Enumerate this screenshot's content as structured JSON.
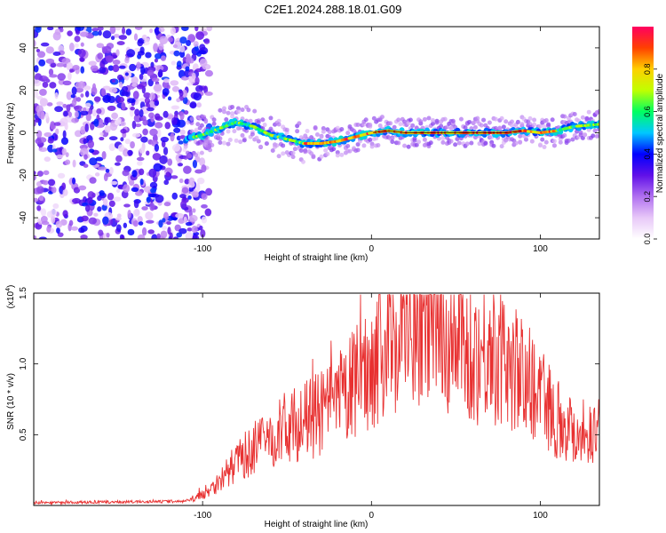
{
  "figure_title": "C2E1.2024.288.18.01.G09",
  "chart_data": [
    {
      "type": "heatmap",
      "title": "",
      "xlabel": "Height of straight line (km)",
      "ylabel": "Frequency (Hz)",
      "xlim": [
        -200,
        135
      ],
      "ylim": [
        -50,
        50
      ],
      "x_ticks": [
        -100,
        0,
        100
      ],
      "y_ticks": [
        -40,
        -20,
        0,
        20,
        40
      ],
      "colorbar": {
        "label": "Normalized spectral amplitude",
        "range": [
          0,
          1
        ],
        "ticks": [
          "0.0",
          "0.2",
          "0.4",
          "0.6",
          "0.8"
        ],
        "colormap": [
          "#ffffff",
          "#e8c8f8",
          "#b070f0",
          "#6010e8",
          "#0000ff",
          "#00c8ff",
          "#00ff60",
          "#c0ff00",
          "#ffd000",
          "#ff4000",
          "#ff0060"
        ]
      },
      "noise_region_x": [
        -200,
        -100
      ],
      "ridge": {
        "x": [
          -110,
          -100,
          -90,
          -80,
          -70,
          -60,
          -50,
          -40,
          -30,
          -20,
          -10,
          0,
          10,
          20,
          40,
          60,
          80,
          90,
          100,
          110,
          120,
          135
        ],
        "y": [
          -3,
          -1,
          2,
          5,
          3,
          -1,
          -3,
          -5,
          -5,
          -4,
          -2,
          0,
          1,
          0,
          0,
          0,
          0,
          1,
          0,
          1,
          3,
          4
        ],
        "peak_amplitude": 1.0
      }
    },
    {
      "type": "line",
      "title": "",
      "xlabel": "Height of straight line (km)",
      "ylabel": "SNR (10 * v/v)",
      "y_multiplier": "(x10",
      "y_multiplier_exp": "4",
      "y_multiplier_close": ")",
      "xlim": [
        -200,
        135
      ],
      "ylim": [
        0,
        1.5
      ],
      "x_ticks": [
        -100,
        0,
        100
      ],
      "y_ticks": [
        "0.5",
        "1.0",
        "1.5"
      ],
      "y_tick_values": [
        0.5,
        1.0,
        1.5
      ],
      "color": "#e83030",
      "series": [
        {
          "x": [
            -200,
            -110,
            -100,
            -90,
            -80,
            -70,
            -60,
            -50,
            -40,
            -30,
            -20,
            -10,
            0,
            10,
            20,
            30,
            40,
            50,
            60,
            70,
            80,
            90,
            100,
            110,
            120,
            135
          ],
          "y": [
            0.02,
            0.03,
            0.08,
            0.18,
            0.32,
            0.42,
            0.5,
            0.58,
            0.62,
            0.68,
            0.76,
            0.9,
            1.05,
            1.22,
            1.32,
            1.35,
            1.3,
            1.2,
            1.1,
            1.15,
            1.05,
            0.95,
            0.85,
            0.65,
            0.55,
            0.55
          ]
        }
      ]
    }
  ]
}
